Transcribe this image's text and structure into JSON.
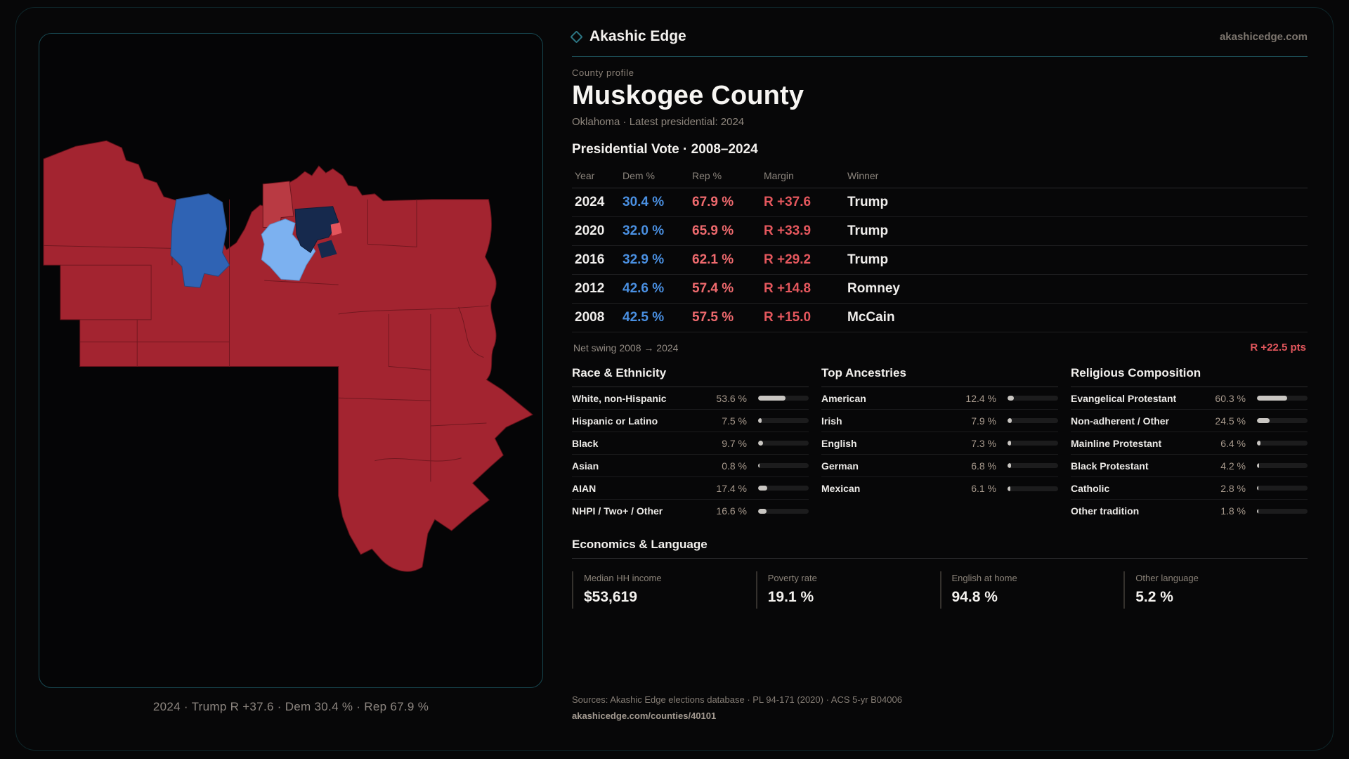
{
  "brand": {
    "name": "Akashic Edge",
    "domain": "akashicedge.com"
  },
  "profile": {
    "eyebrow": "County profile",
    "title": "Muskogee County",
    "subtitle": "Oklahoma · Latest presidential: 2024"
  },
  "map": {
    "caption": "2024 · Trump R +37.6 · Dem 30.4 % · Rep 67.9 %"
  },
  "vote_table": {
    "heading": "Presidential Vote · 2008–2024",
    "columns": [
      "Year",
      "Dem %",
      "Rep %",
      "Margin",
      "Winner"
    ],
    "rows": [
      {
        "year": "2024",
        "dem": "30.4 %",
        "rep": "67.9 %",
        "margin": "R +37.6",
        "winner": "Trump"
      },
      {
        "year": "2020",
        "dem": "32.0 %",
        "rep": "65.9 %",
        "margin": "R +33.9",
        "winner": "Trump"
      },
      {
        "year": "2016",
        "dem": "32.9 %",
        "rep": "62.1 %",
        "margin": "R +29.2",
        "winner": "Trump"
      },
      {
        "year": "2012",
        "dem": "42.6 %",
        "rep": "57.4 %",
        "margin": "R +14.8",
        "winner": "Romney"
      },
      {
        "year": "2008",
        "dem": "42.5 %",
        "rep": "57.5 %",
        "margin": "R +15.0",
        "winner": "McCain"
      }
    ]
  },
  "net_swing": {
    "label": "Net swing 2008 → 2024",
    "value": "R +22.5 pts"
  },
  "demographics": {
    "race": {
      "heading": "Race & Ethnicity",
      "rows": [
        {
          "label": "White, non-Hispanic",
          "value": "53.6 %",
          "pct": 53.6
        },
        {
          "label": "Hispanic or Latino",
          "value": "7.5 %",
          "pct": 7.5
        },
        {
          "label": "Black",
          "value": "9.7 %",
          "pct": 9.7
        },
        {
          "label": "Asian",
          "value": "0.8 %",
          "pct": 0.8
        },
        {
          "label": "AIAN",
          "value": "17.4 %",
          "pct": 17.4
        },
        {
          "label": "NHPI / Two+ / Other",
          "value": "16.6 %",
          "pct": 16.6
        }
      ]
    },
    "ancestries": {
      "heading": "Top Ancestries",
      "rows": [
        {
          "label": "American",
          "value": "12.4 %",
          "pct": 12.4
        },
        {
          "label": "Irish",
          "value": "7.9 %",
          "pct": 7.9
        },
        {
          "label": "English",
          "value": "7.3 %",
          "pct": 7.3
        },
        {
          "label": "German",
          "value": "6.8 %",
          "pct": 6.8
        },
        {
          "label": "Mexican",
          "value": "6.1 %",
          "pct": 6.1
        }
      ]
    },
    "religion": {
      "heading": "Religious Composition",
      "rows": [
        {
          "label": "Evangelical Protestant",
          "value": "60.3 %",
          "pct": 60.3
        },
        {
          "label": "Non-adherent / Other",
          "value": "24.5 %",
          "pct": 24.5
        },
        {
          "label": "Mainline Protestant",
          "value": "6.4 %",
          "pct": 6.4
        },
        {
          "label": "Black Protestant",
          "value": "4.2 %",
          "pct": 4.2
        },
        {
          "label": "Catholic",
          "value": "2.8 %",
          "pct": 2.8
        },
        {
          "label": "Other tradition",
          "value": "1.8 %",
          "pct": 1.8
        }
      ]
    }
  },
  "economics": {
    "heading": "Economics & Language",
    "stats": [
      {
        "label": "Median HH income",
        "value": "$53,619"
      },
      {
        "label": "Poverty rate",
        "value": "19.1 %"
      },
      {
        "label": "English at home",
        "value": "94.8 %"
      },
      {
        "label": "Other language",
        "value": "5.2 %"
      }
    ]
  },
  "footer": {
    "sources": "Sources: Akashic Edge elections database · PL 94-171 (2020) · ACS 5-yr B04006",
    "permalink": "akashicedge.com/counties/40101"
  },
  "colors": {
    "accent_teal": "#1d515a",
    "dem_blue": "#4a90e2",
    "rep_red": "#ef6a6e",
    "margin_red": "#e4575d",
    "map_red": "#a32430",
    "map_red_light": "#b93a43",
    "map_pink": "#e4555c",
    "map_blue": "#2f63b4",
    "map_blue_light": "#7cb1f0",
    "map_navy": "#16294d"
  }
}
